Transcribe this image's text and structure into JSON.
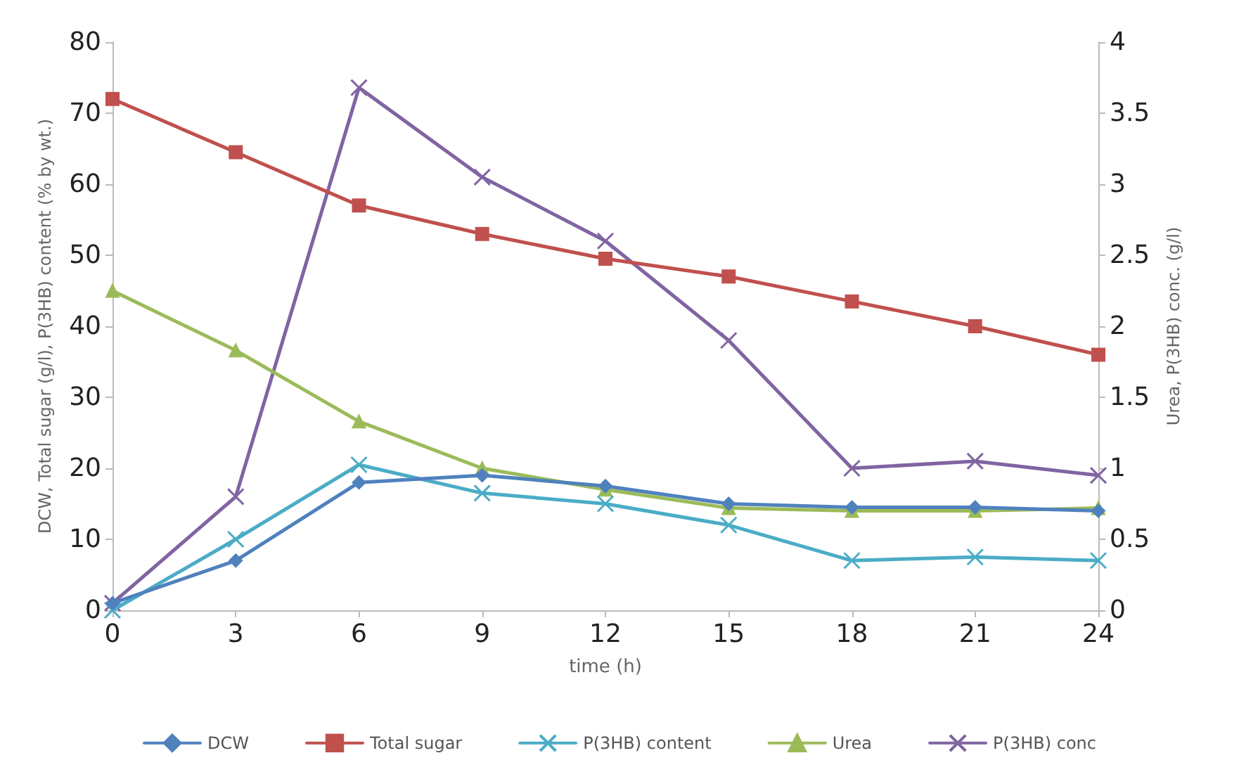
{
  "chart_data": {
    "type": "line",
    "xlabel": "time (h)",
    "ylabel": "DCW, Total sugar (g/l), P(3HB) content (% by wt.)",
    "y2label": "Urea, P(3HB) conc. (g/l)",
    "x": [
      0,
      3,
      6,
      9,
      12,
      15,
      18,
      21,
      24
    ],
    "series": [
      {
        "name": "DCW",
        "color": "#4f81bd",
        "marker": "diamond",
        "values": [
          1,
          7,
          18,
          19,
          17.5,
          15,
          14.5,
          14.5,
          14
        ]
      },
      {
        "name": "Total sugar",
        "color": "#c0504d",
        "marker": "square",
        "values": [
          72,
          64.5,
          57,
          53,
          49.5,
          47,
          43.5,
          40,
          36
        ]
      },
      {
        "name": "P(3HB) content",
        "color": "#4bacc6",
        "marker": "cross",
        "values": [
          0,
          10,
          20.5,
          16.5,
          15,
          12,
          7,
          7.5,
          7
        ]
      },
      {
        "name": "Urea",
        "color": "#9bbb59",
        "marker": "triangle",
        "axis": "y2",
        "values": [
          2.25,
          1.83,
          1.33,
          1.0,
          0.85,
          0.72,
          0.7,
          0.7,
          0.72
        ]
      },
      {
        "name": "P(3HB) conc",
        "color": "#8064a2",
        "marker": "cross",
        "axis": "y2",
        "values": [
          0.05,
          0.8,
          3.68,
          3.05,
          2.6,
          1.9,
          1.0,
          1.05,
          0.95
        ]
      }
    ],
    "xlim": [
      0,
      24
    ],
    "xticks": [
      0,
      3,
      6,
      9,
      12,
      15,
      18,
      21,
      24
    ],
    "ylim": [
      0,
      80
    ],
    "yticks": [
      0,
      10,
      20,
      30,
      40,
      50,
      60,
      70,
      80
    ],
    "y2lim": [
      0,
      4
    ],
    "y2ticks": [
      0,
      0.5,
      1,
      1.5,
      2,
      2.5,
      3,
      3.5,
      4
    ],
    "grid": false,
    "legend": "bottom",
    "line_style": "solid"
  }
}
